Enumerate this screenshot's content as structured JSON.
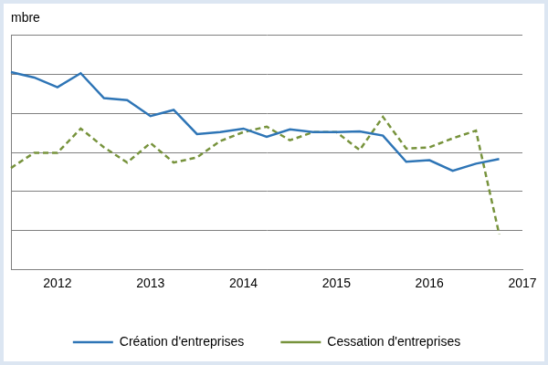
{
  "chart_data": {
    "type": "line",
    "ylabel": "mbre",
    "categories": [
      null,
      null,
      "2012",
      null,
      null,
      null,
      "2013",
      null,
      null,
      null,
      "2014",
      null,
      null,
      null,
      "2015",
      null,
      null,
      null,
      "2016",
      null,
      null,
      null,
      "2017"
    ],
    "series": [
      {
        "name": "Création d'entreprises",
        "color": "#2e75b6",
        "line_style": "solid",
        "values": [
          5.06,
          4.92,
          4.67,
          5.03,
          4.39,
          4.34,
          3.93,
          4.09,
          3.47,
          3.52,
          3.61,
          3.4,
          3.59,
          3.52,
          3.52,
          3.54,
          3.43,
          2.76,
          2.8,
          2.53,
          2.71,
          2.83,
          null
        ]
      },
      {
        "name": "Cessation d'entreprises",
        "color": "#77933c",
        "line_style": "dashed",
        "values": [
          2.6,
          2.99,
          2.99,
          3.61,
          3.13,
          2.74,
          3.24,
          2.74,
          2.87,
          3.29,
          3.52,
          3.66,
          3.31,
          3.52,
          3.52,
          3.06,
          3.91,
          3.1,
          3.13,
          3.36,
          3.56,
          0.9,
          null
        ]
      }
    ],
    "ylim": [
      0,
      6
    ],
    "yticks": [
      0,
      1,
      2,
      3,
      4,
      5,
      6
    ],
    "grid": true,
    "legend": "bottom",
    "tick_labels": "x"
  }
}
